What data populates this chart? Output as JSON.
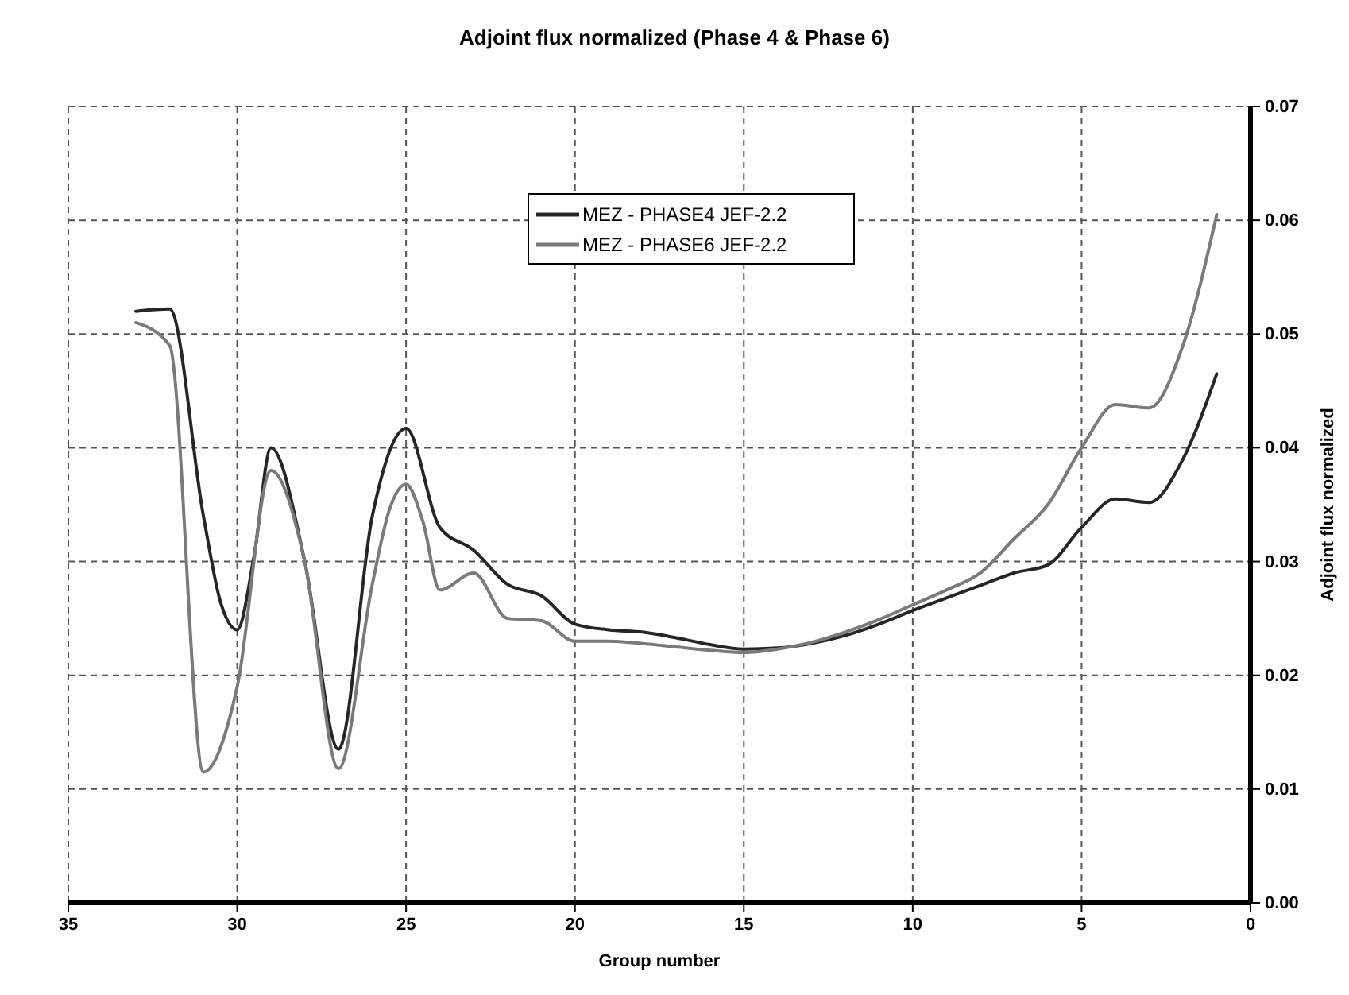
{
  "chart_data": {
    "type": "line",
    "title": "Adjoint flux normalized (Phase 4 & Phase 6)",
    "xlabel": "Group number",
    "ylabel": "Adjoint flux normalized",
    "series": [
      {
        "name": "MEZ - PHASE4 JEF-2.2",
        "color": "#262626",
        "x": [
          33,
          32,
          31,
          30.5,
          30,
          29.5,
          29,
          28,
          27,
          26,
          25,
          24,
          23,
          22,
          21,
          20,
          19,
          18,
          17,
          16,
          15,
          14,
          13,
          12,
          11,
          10,
          9,
          8,
          7,
          6,
          5,
          4,
          3,
          2,
          1
        ],
        "values": [
          0.052,
          0.0522,
          0.034,
          0.0265,
          0.024,
          0.0305,
          0.04,
          0.03,
          0.0135,
          0.034,
          0.0417,
          0.033,
          0.031,
          0.028,
          0.027,
          0.0245,
          0.024,
          0.0238,
          0.0233,
          0.0227,
          0.0223,
          0.0224,
          0.0228,
          0.0235,
          0.0245,
          0.0257,
          0.0268,
          0.0279,
          0.029,
          0.0297,
          0.033,
          0.0355,
          0.0352,
          0.039,
          0.0465
        ]
      },
      {
        "name": "MEZ - PHASE6 JEF-2.2",
        "color": "#7a7a7a",
        "x": [
          33,
          32,
          31,
          30,
          29,
          28,
          27,
          26,
          25.5,
          25,
          24.5,
          24,
          23,
          22,
          21,
          20,
          19,
          18,
          17,
          16,
          15,
          14,
          13,
          12,
          11,
          10,
          9,
          8,
          7,
          6,
          5,
          4,
          3,
          2,
          1
        ],
        "values": [
          0.051,
          0.049,
          0.0115,
          0.019,
          0.038,
          0.03,
          0.0118,
          0.028,
          0.0345,
          0.0368,
          0.0335,
          0.0275,
          0.029,
          0.025,
          0.0248,
          0.023,
          0.023,
          0.0228,
          0.0225,
          0.0222,
          0.022,
          0.0223,
          0.0229,
          0.0238,
          0.0249,
          0.0262,
          0.0275,
          0.029,
          0.032,
          0.035,
          0.04,
          0.0438,
          0.0435,
          0.049,
          0.0605
        ]
      }
    ],
    "xlim": [
      35,
      0
    ],
    "xticks": [
      35,
      30,
      25,
      20,
      15,
      10,
      5,
      0
    ],
    "ylim": [
      0,
      0.07
    ],
    "yticks": [
      {
        "value": 0,
        "label": "0.00"
      },
      {
        "value": 0.01,
        "label": "0.01"
      },
      {
        "value": 0.02,
        "label": "0.02"
      },
      {
        "value": 0.03,
        "label": "0.03"
      },
      {
        "value": 0.04,
        "label": "0.04"
      },
      {
        "value": 0.05,
        "label": "0.05"
      },
      {
        "value": 0.06,
        "label": "0.06"
      },
      {
        "value": 0.07,
        "label": "0.07"
      }
    ],
    "grid": true,
    "legend": "top",
    "marker": "none",
    "line_style": "solid"
  }
}
